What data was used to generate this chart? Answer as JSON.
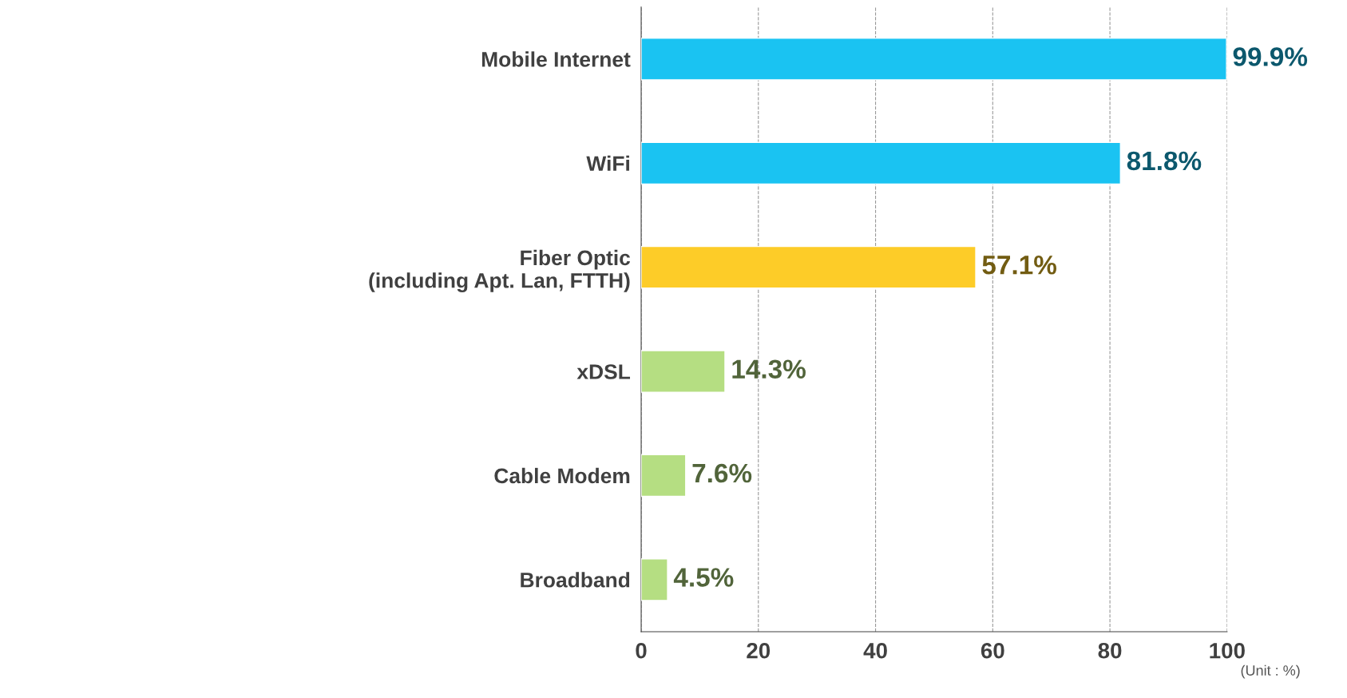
{
  "chart_data": {
    "type": "bar",
    "orientation": "horizontal",
    "categories": [
      "Mobile Internet",
      "WiFi",
      "Fiber Optic\n(including Apt. Lan, FTTH)",
      "xDSL",
      "Cable Modem",
      "Broadband"
    ],
    "values": [
      99.9,
      81.8,
      57.1,
      14.3,
      7.6,
      4.5
    ],
    "colors": [
      "#1ac3f2",
      "#1ac3f2",
      "#fdcc28",
      "#b5de82",
      "#b5de82",
      "#b5de82"
    ],
    "value_labels": [
      "99.9%",
      "81.8%",
      "57.1%",
      "14.3%",
      "7.6%",
      "4.5%"
    ],
    "xlim": [
      0,
      100
    ],
    "xticks": [
      0,
      20,
      40,
      60,
      80,
      100
    ],
    "grid": "x",
    "annotations": [
      "(Unit : %)"
    ]
  }
}
